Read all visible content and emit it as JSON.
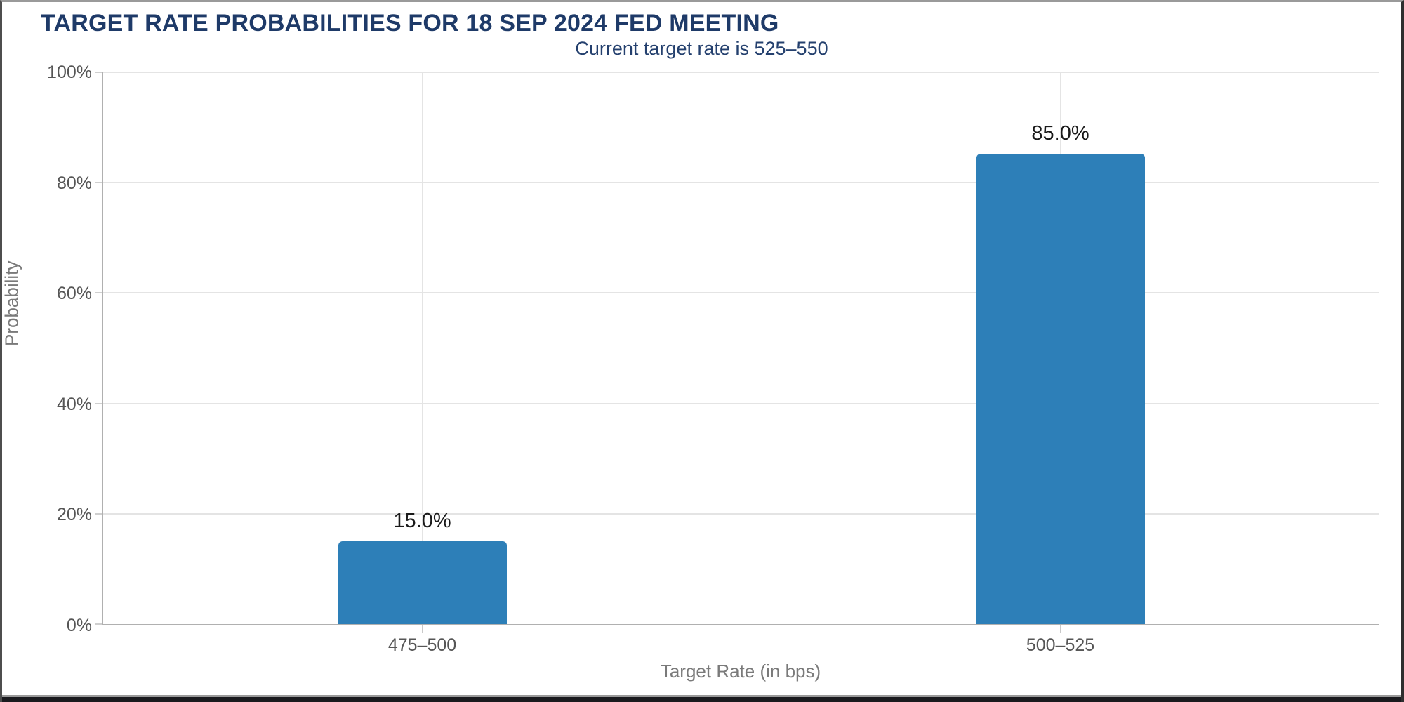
{
  "page": {
    "title": "TARGET RATE PROBABILITIES FOR 18 SEP 2024 FED MEETING",
    "subtitle": "Current target rate is 525–550"
  },
  "chart_data": {
    "type": "bar",
    "title": "TARGET RATE PROBABILITIES FOR 18 SEP 2024 FED MEETING",
    "subtitle": "Current target rate is 525–550",
    "categories": [
      "475–500",
      "500–525"
    ],
    "values": [
      15.0,
      85.0
    ],
    "bar_labels": [
      "15.0%",
      "85.0%"
    ],
    "xlabel": "Target Rate (in bps)",
    "ylabel": "Probability",
    "ylim": [
      0,
      100
    ],
    "yticks": [
      0,
      20,
      40,
      60,
      80,
      100
    ],
    "ytick_labels": [
      "0%",
      "20%",
      "40%",
      "60%",
      "80%",
      "100%"
    ],
    "bar_color": "#2d7fb8",
    "grid": true,
    "legend": false,
    "colors": {
      "title_text": "#1e3a68",
      "subtitle_text": "#24406e",
      "bar_fill": "#2d7fb8",
      "axis_line": "#b0b0b0",
      "gridline": "#e4e4e4",
      "tick_text": "#565656",
      "axis_title_text": "#7a7a7a",
      "value_label_text": "#1a1a1a"
    }
  }
}
